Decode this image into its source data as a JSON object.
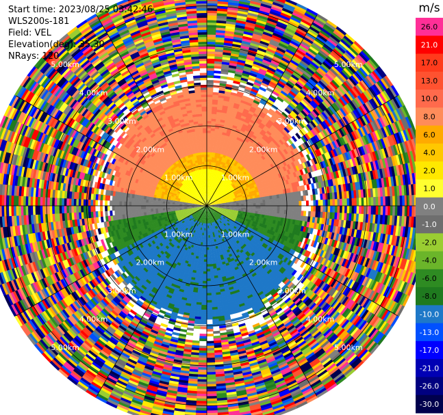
{
  "header": {
    "start_time": "Start time: 2023/08/25 03:42:46",
    "instrument": "WLS200s-181",
    "field": "Field: VEL",
    "elevation": "Elevation(deg): 35.30",
    "nrays": "NRays: 120"
  },
  "chart_data": {
    "type": "ppi_radar",
    "field": "VEL",
    "units": "m/s",
    "nrays": 120,
    "elevation_deg": 35.3,
    "range_rings_km": [
      1,
      2,
      3,
      4,
      5
    ],
    "ring_labels": [
      "1.00km",
      "2.00km",
      "3.00km",
      "4.00km",
      "5.00km"
    ],
    "range_max_km": 5.5,
    "spoke_angles_deg": [
      0,
      30,
      60,
      90,
      120,
      150,
      180,
      210,
      240,
      270,
      300,
      330
    ],
    "colorbar": {
      "ticks": [
        "26.0",
        "21.0",
        "17.0",
        "13.0",
        "10.0",
        "8.0",
        "6.0",
        "4.0",
        "2.0",
        "1.0",
        "0.0",
        "-1.0",
        "-2.0",
        "-4.0",
        "-6.0",
        "-8.0",
        "-10.0",
        "-13.0",
        "-17.0",
        "-21.0",
        "-26.0",
        "-30.0"
      ],
      "colors": [
        "#ff2f97",
        "#ff0000",
        "#ff3b1c",
        "#ff5230",
        "#ff6a4c",
        "#ff8c5a",
        "#ffaa00",
        "#ffc800",
        "#ffe800",
        "#ffff30",
        "#808080",
        "#6e6e6e",
        "#9acd32",
        "#6bb52a",
        "#2e8b22",
        "#1f7a1f",
        "#1e78c8",
        "#0050ff",
        "#0000ff",
        "#0000b4",
        "#000080",
        "#00004d"
      ]
    },
    "velocity_pattern": {
      "north": {
        "near": "#ffff00",
        "mid": "#ff8c5a",
        "far_gate_km": 2.9
      },
      "south": {
        "near": "#1e78c8",
        "mid": "#1e78c8",
        "far_gate_km": 2.6
      },
      "east": "#808080",
      "west": "#808080"
    }
  }
}
